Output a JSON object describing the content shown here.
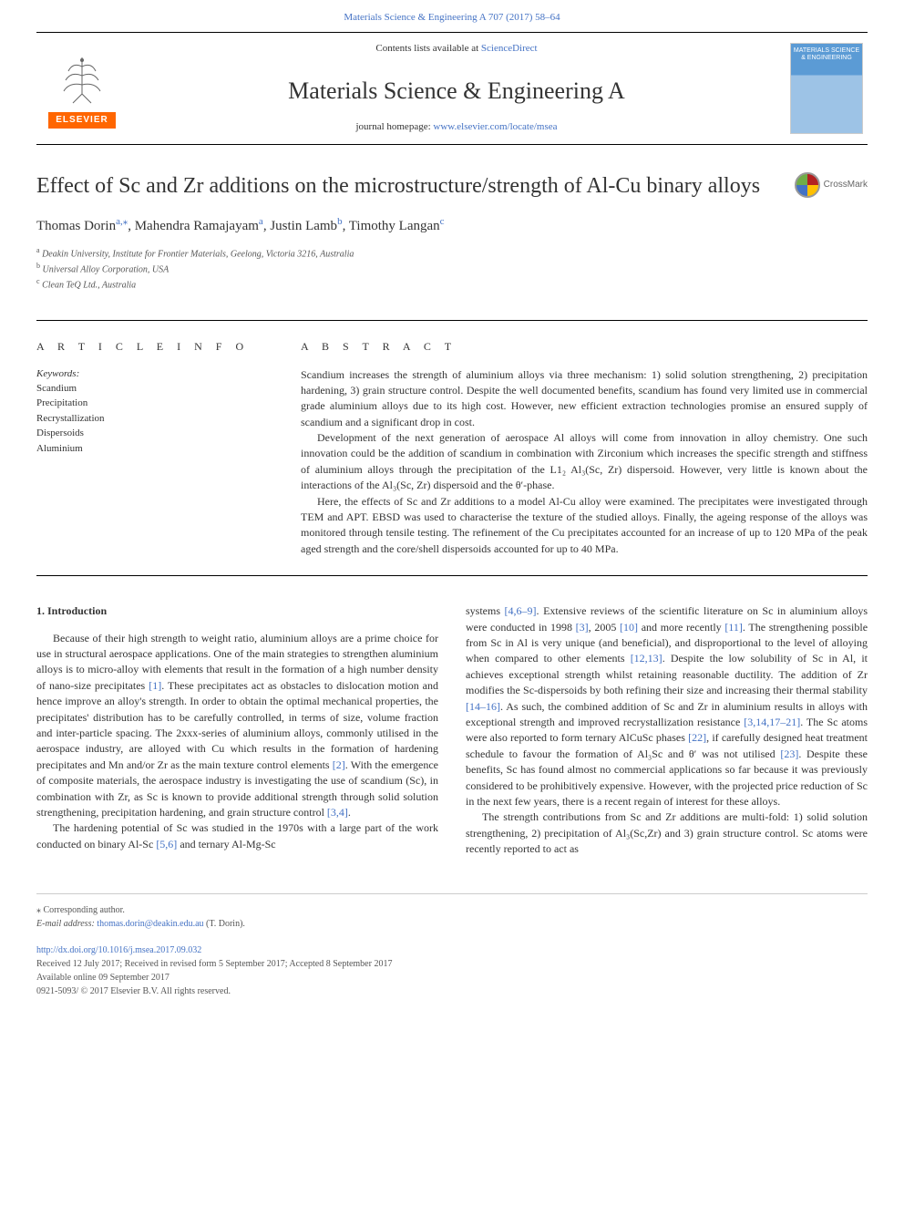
{
  "top_citation": "Materials Science & Engineering A 707 (2017) 58–64",
  "header": {
    "contents_prefix": "Contents lists available at ",
    "sciencedirect": "ScienceDirect",
    "journal_name": "Materials Science & Engineering A",
    "homepage_prefix": "journal homepage: ",
    "homepage_url": "www.elsevier.com/locate/msea",
    "elsevier_label": "ELSEVIER",
    "cover_title": "MATERIALS SCIENCE & ENGINEERING"
  },
  "crossmark_label": "CrossMark",
  "article": {
    "title": "Effect of Sc and Zr additions on the microstructure/strength of Al-Cu binary alloys",
    "authors_html": "Thomas Dorin|a,*|, Mahendra Ramajayam|a|, Justin Lamb|b|, Timothy Langan|c|",
    "authors": [
      {
        "name": "Thomas Dorin",
        "sup": "a,⁎"
      },
      {
        "name": "Mahendra Ramajayam",
        "sup": "a"
      },
      {
        "name": "Justin Lamb",
        "sup": "b"
      },
      {
        "name": "Timothy Langan",
        "sup": "c"
      }
    ],
    "affiliations": [
      {
        "sup": "a",
        "text": "Deakin University, Institute for Frontier Materials, Geelong, Victoria 3216, Australia"
      },
      {
        "sup": "b",
        "text": "Universal Alloy Corporation, USA"
      },
      {
        "sup": "c",
        "text": "Clean TeQ Ltd., Australia"
      }
    ]
  },
  "info": {
    "heading": "A R T I C L E  I N F O",
    "keywords_label": "Keywords:",
    "keywords": [
      "Scandium",
      "Precipitation",
      "Recrystallization",
      "Dispersoids",
      "Aluminium"
    ]
  },
  "abstract": {
    "heading": "A B S T R A C T",
    "paragraphs": [
      "Scandium increases the strength of aluminium alloys via three mechanism: 1) solid solution strengthening, 2) precipitation hardening, 3) grain structure control. Despite the well documented benefits, scandium has found very limited use in commercial grade aluminium alloys due to its high cost. However, new efficient extraction technologies promise an ensured supply of scandium and a significant drop in cost.",
      "Development of the next generation of aerospace Al alloys will come from innovation in alloy chemistry. One such innovation could be the addition of scandium in combination with Zirconium which increases the specific strength and stiffness of aluminium alloys through the precipitation of the L1₂ Al₃(Sc, Zr) dispersoid. However, very little is known about the interactions of the Al₃(Sc, Zr) dispersoid and the θ′-phase.",
      "Here, the effects of Sc and Zr additions to a model Al-Cu alloy were examined. The precipitates were investigated through TEM and APT. EBSD was used to characterise the texture of the studied alloys. Finally, the ageing response of the alloys was monitored through tensile testing. The refinement of the Cu precipitates accounted for an increase of up to 120 MPa of the peak aged strength and the core/shell dispersoids accounted for up to 40 MPa."
    ]
  },
  "body": {
    "intro_heading": "1. Introduction",
    "col1": [
      "Because of their high strength to weight ratio, aluminium alloys are a prime choice for use in structural aerospace applications. One of the main strategies to strengthen aluminium alloys is to micro-alloy with elements that result in the formation of a high number density of nano-size precipitates [1]. These precipitates act as obstacles to dislocation motion and hence improve an alloy's strength. In order to obtain the optimal mechanical properties, the precipitates' distribution has to be carefully controlled, in terms of size, volume fraction and inter-particle spacing. The 2xxx-series of aluminium alloys, commonly utilised in the aerospace industry, are alloyed with Cu which results in the formation of hardening precipitates and Mn and/or Zr as the main texture control elements [2]. With the emergence of composite materials, the aerospace industry is investigating the use of scandium (Sc), in combination with Zr, as Sc is known to provide additional strength through solid solution strengthening, precipitation hardening, and grain structure control [3,4].",
      "The hardening potential of Sc was studied in the 1970s with a large part of the work conducted on binary Al-Sc [5,6] and ternary Al-Mg-Sc"
    ],
    "col2": [
      "systems [4,6–9]. Extensive reviews of the scientific literature on Sc in aluminium alloys were conducted in 1998 [3], 2005 [10] and more recently [11]. The strengthening possible from Sc in Al is very unique (and beneficial), and disproportional to the level of alloying when compared to other elements [12,13]. Despite the low solubility of Sc in Al, it achieves exceptional strength whilst retaining reasonable ductility. The addition of Zr modifies the Sc-dispersoids by both refining their size and increasing their thermal stability [14–16]. As such, the combined addition of Sc and Zr in aluminium results in alloys with exceptional strength and improved recrystallization resistance [3,14,17–21]. The Sc atoms were also reported to form ternary AlCuSc phases [22], if carefully designed heat treatment schedule to favour the formation of Al₃Sc and θ′ was not utilised [23]. Despite these benefits, Sc has found almost no commercial applications so far because it was previously considered to be prohibitively expensive. However, with the projected price reduction of Sc in the next few years, there is a recent regain of interest for these alloys.",
      "The strength contributions from Sc and Zr additions are multi-fold: 1) solid solution strengthening, 2) precipitation of Al₃(Sc,Zr) and 3) grain structure control. Sc atoms were recently reported to act as"
    ],
    "refs_col1": {
      "r1": "[1]",
      "r2": "[2]",
      "r34": "[3,4]",
      "r56": "[5,6]"
    },
    "refs_col2": {
      "r469": "[4,6–9]",
      "r3": "[3]",
      "r10": "[10]",
      "r11": "[11]",
      "r1213": "[12,13]",
      "r1416": "[14–16]",
      "r31421": "[3,14,17–21]",
      "r22": "[22]",
      "r23": "[23]"
    }
  },
  "footer": {
    "corr_marker": "⁎",
    "corr_text": "Corresponding author.",
    "email_label": "E-mail address: ",
    "email": "thomas.dorin@deakin.edu.au",
    "email_suffix": " (T. Dorin).",
    "doi": "http://dx.doi.org/10.1016/j.msea.2017.09.032",
    "received": "Received 12 July 2017; Received in revised form 5 September 2017; Accepted 8 September 2017",
    "available": "Available online 09 September 2017",
    "copyright": "0921-5093/ © 2017 Elsevier B.V. All rights reserved."
  },
  "colors": {
    "link": "#4472c4",
    "elsevier_orange": "#ff6600",
    "text": "#333333",
    "cover_top": "#5b9bd5",
    "cover_bottom": "#9dc3e6"
  }
}
